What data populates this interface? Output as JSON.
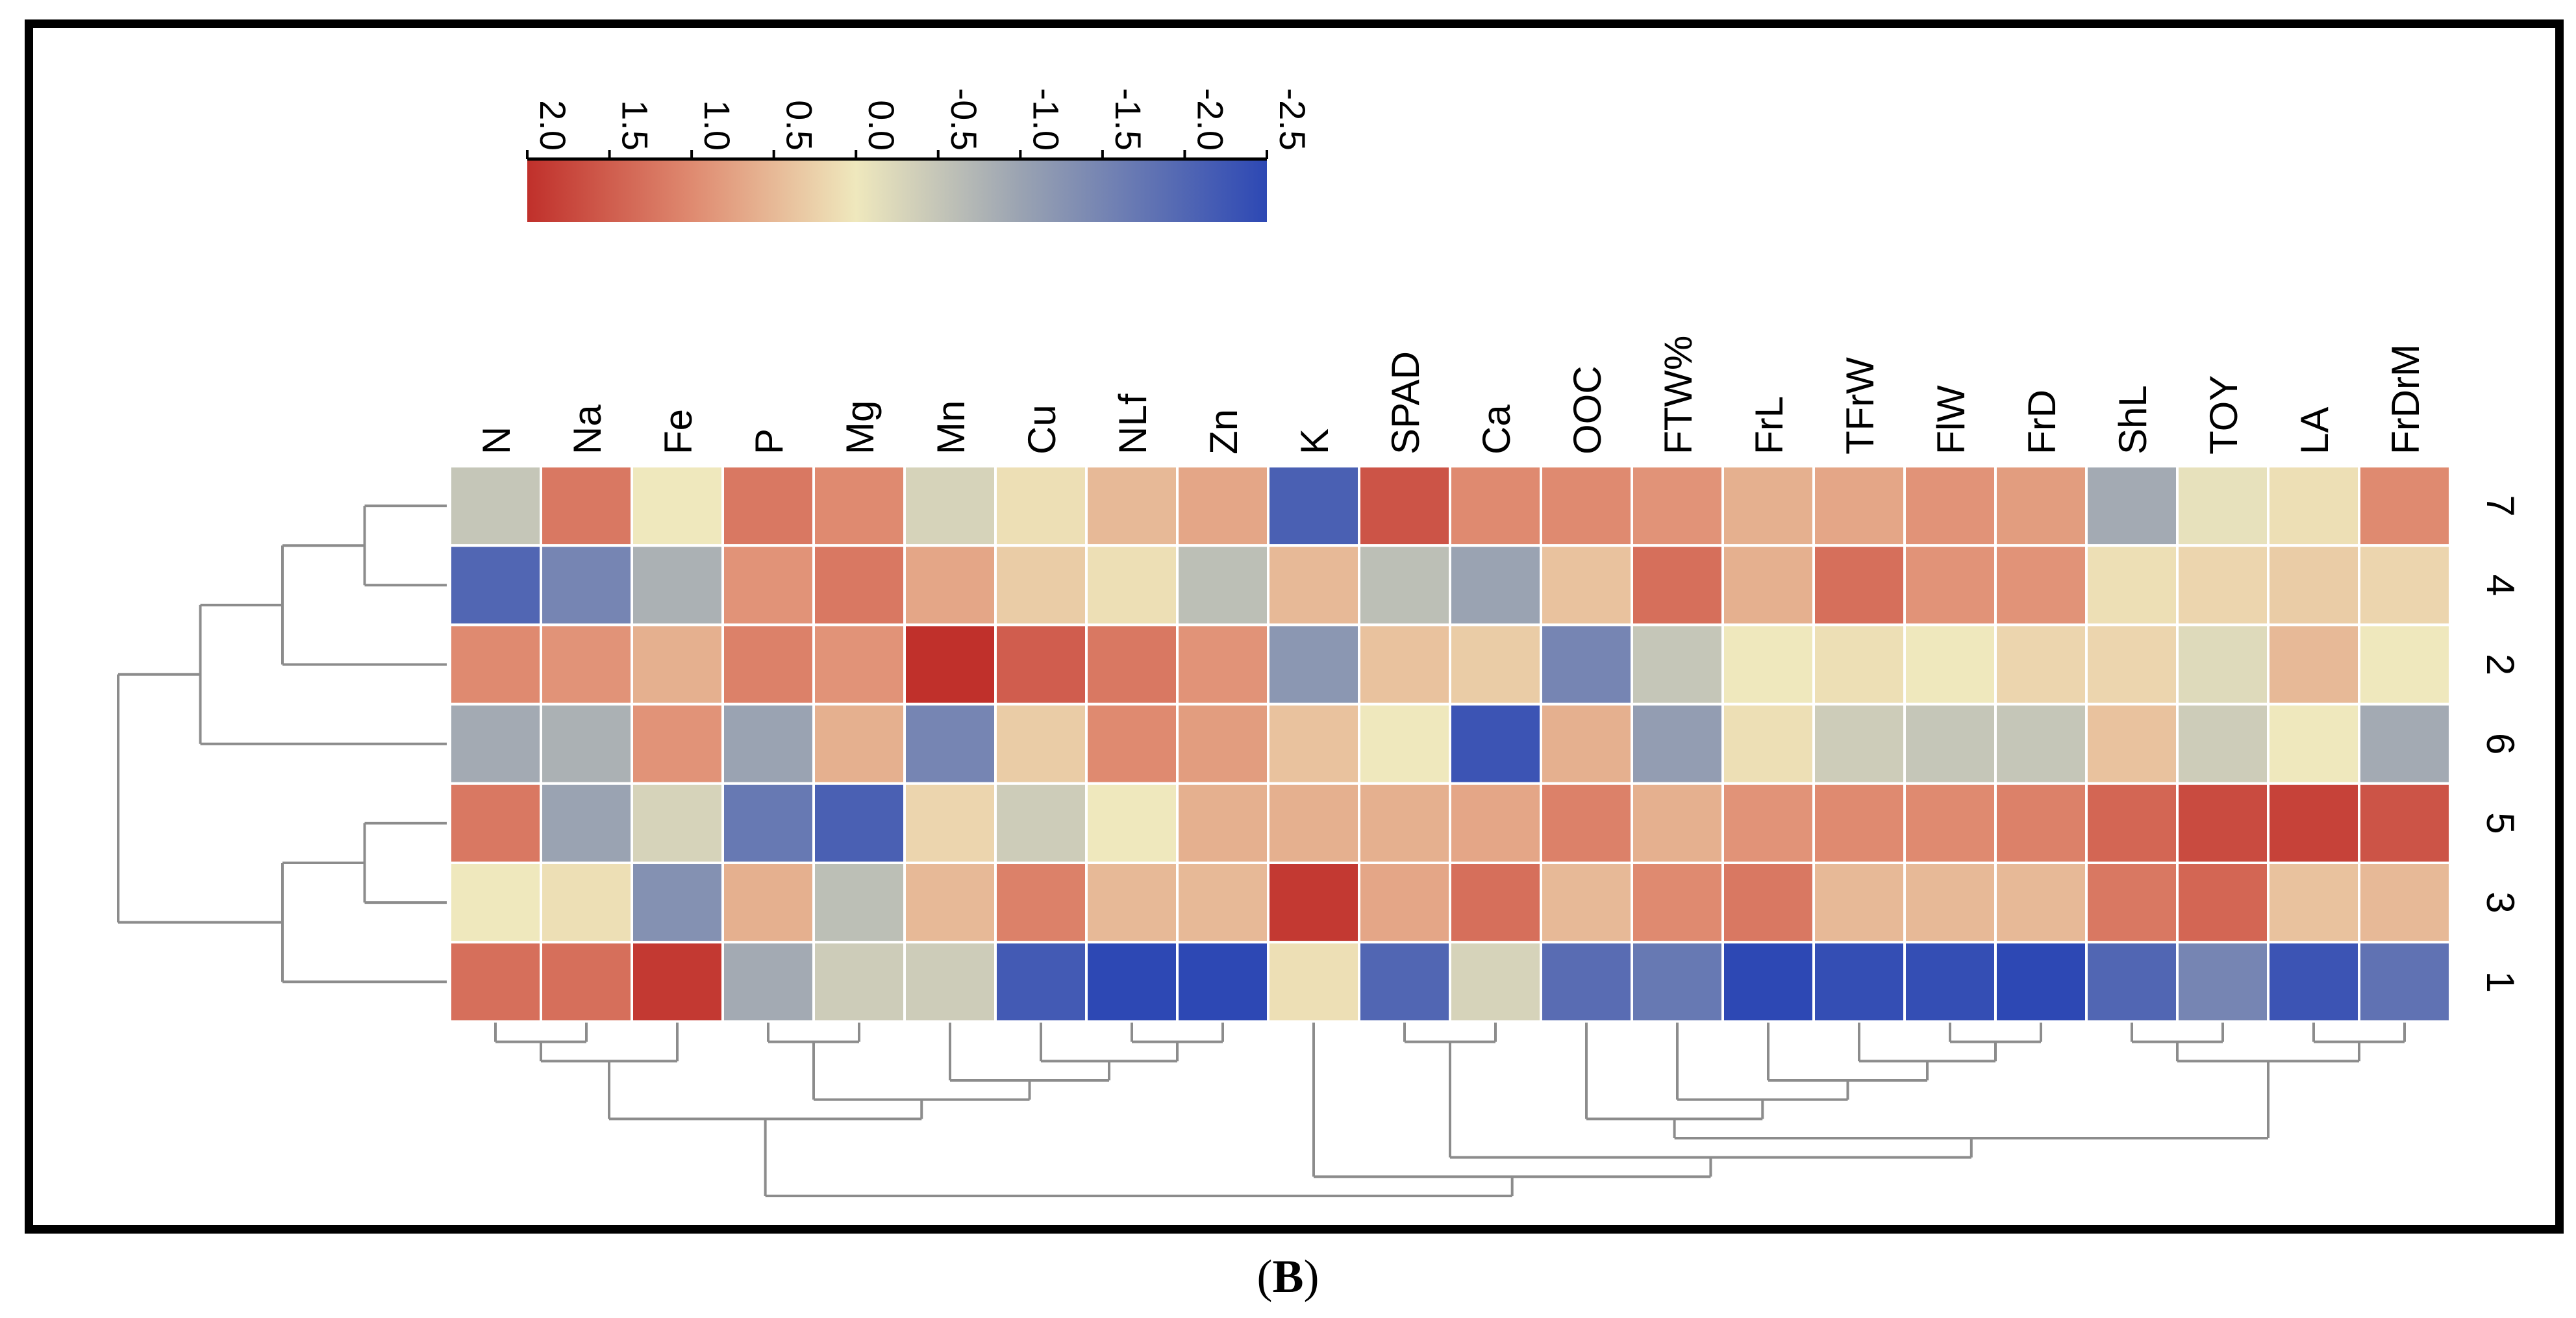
{
  "chart_data": {
    "type": "heatmap",
    "columns": [
      "N",
      "Na",
      "Fe",
      "P",
      "Mg",
      "Mn",
      "Cu",
      "NLf",
      "Zn",
      "K",
      "SPAD",
      "Ca",
      "OOC",
      "FTW%",
      "FrL",
      "TFrW",
      "FlW",
      "FrD",
      "ShL",
      "TOY",
      "LA",
      "FrDrM"
    ],
    "rows": [
      "7",
      "4",
      "2",
      "6",
      "5",
      "3",
      "1"
    ],
    "values": [
      [
        -0.5,
        1.2,
        0.0,
        1.2,
        1.0,
        -0.3,
        0.1,
        0.5,
        0.7,
        -2.1,
        1.6,
        1.0,
        1.0,
        0.9,
        0.6,
        0.7,
        0.9,
        0.8,
        -0.9,
        -0.1,
        0.1,
        1.0
      ],
      [
        -2.0,
        -1.5,
        -0.8,
        0.9,
        1.2,
        0.7,
        0.3,
        0.1,
        -0.6,
        0.5,
        -0.6,
        -1.0,
        0.4,
        1.3,
        0.6,
        1.3,
        0.9,
        0.9,
        0.1,
        0.2,
        0.3,
        0.2
      ],
      [
        1.0,
        0.9,
        0.6,
        1.1,
        0.9,
        2.0,
        1.5,
        1.2,
        0.9,
        -1.2,
        0.4,
        0.3,
        -1.5,
        -0.5,
        0.0,
        0.1,
        0.0,
        0.2,
        0.2,
        -0.2,
        0.5,
        0.0
      ],
      [
        -0.9,
        -0.8,
        0.9,
        -1.0,
        0.6,
        -1.5,
        0.3,
        1.0,
        0.8,
        0.4,
        0.0,
        -2.3,
        0.6,
        -1.1,
        0.1,
        -0.4,
        -0.5,
        -0.5,
        0.4,
        -0.4,
        0.0,
        -0.9
      ],
      [
        1.2,
        -1.0,
        -0.3,
        -1.7,
        -2.1,
        0.2,
        -0.4,
        0.0,
        0.6,
        0.6,
        0.6,
        0.7,
        1.1,
        0.6,
        0.9,
        1.0,
        1.0,
        1.1,
        1.4,
        1.7,
        1.8,
        1.6
      ],
      [
        0.0,
        0.1,
        -1.3,
        0.6,
        -0.6,
        0.5,
        1.1,
        0.5,
        0.5,
        1.9,
        0.7,
        1.3,
        0.5,
        1.0,
        1.2,
        0.5,
        0.5,
        0.5,
        1.2,
        1.4,
        0.4,
        0.5
      ],
      [
        1.3,
        1.3,
        1.9,
        -0.9,
        -0.4,
        -0.4,
        -2.2,
        -2.5,
        -2.5,
        0.1,
        -2.0,
        -0.3,
        -1.9,
        -1.7,
        -2.6,
        -2.4,
        -2.4,
        -2.5,
        -2.0,
        -1.5,
        -2.3,
        -1.8
      ]
    ],
    "color_scale": {
      "ticks": [
        "2.0",
        "1.5",
        "1.0",
        "0.5",
        "0.0",
        "-0.5",
        "-1.0",
        "-1.5",
        "-2.0",
        "-2.5"
      ],
      "range": [
        2.0,
        -2.5
      ],
      "stops": [
        {
          "value": 2.0,
          "color": "#c0302b"
        },
        {
          "value": 1.0,
          "color": "#df8a70"
        },
        {
          "value": 0.0,
          "color": "#efe8bd"
        },
        {
          "value": -1.0,
          "color": "#9aa3b2"
        },
        {
          "value": -2.5,
          "color": "#2d48b4"
        }
      ]
    },
    "row_dendrogram": "((((7,4),2),6),((5,3),1))",
    "column_dendrogram": "(((N,Na),Fe),((P,Mg),(Mn,(Cu,(NLf,Zn))))),(K,((SPAD,Ca),((OOC,(FTW%,(FrL,(TFrW,(FlW,FrD))))),((ShL,TOY),(LA,FrDrM)))))"
  },
  "figure": {
    "panel_label_open": "(",
    "panel_label_letter": "B",
    "panel_label_close": ")"
  }
}
